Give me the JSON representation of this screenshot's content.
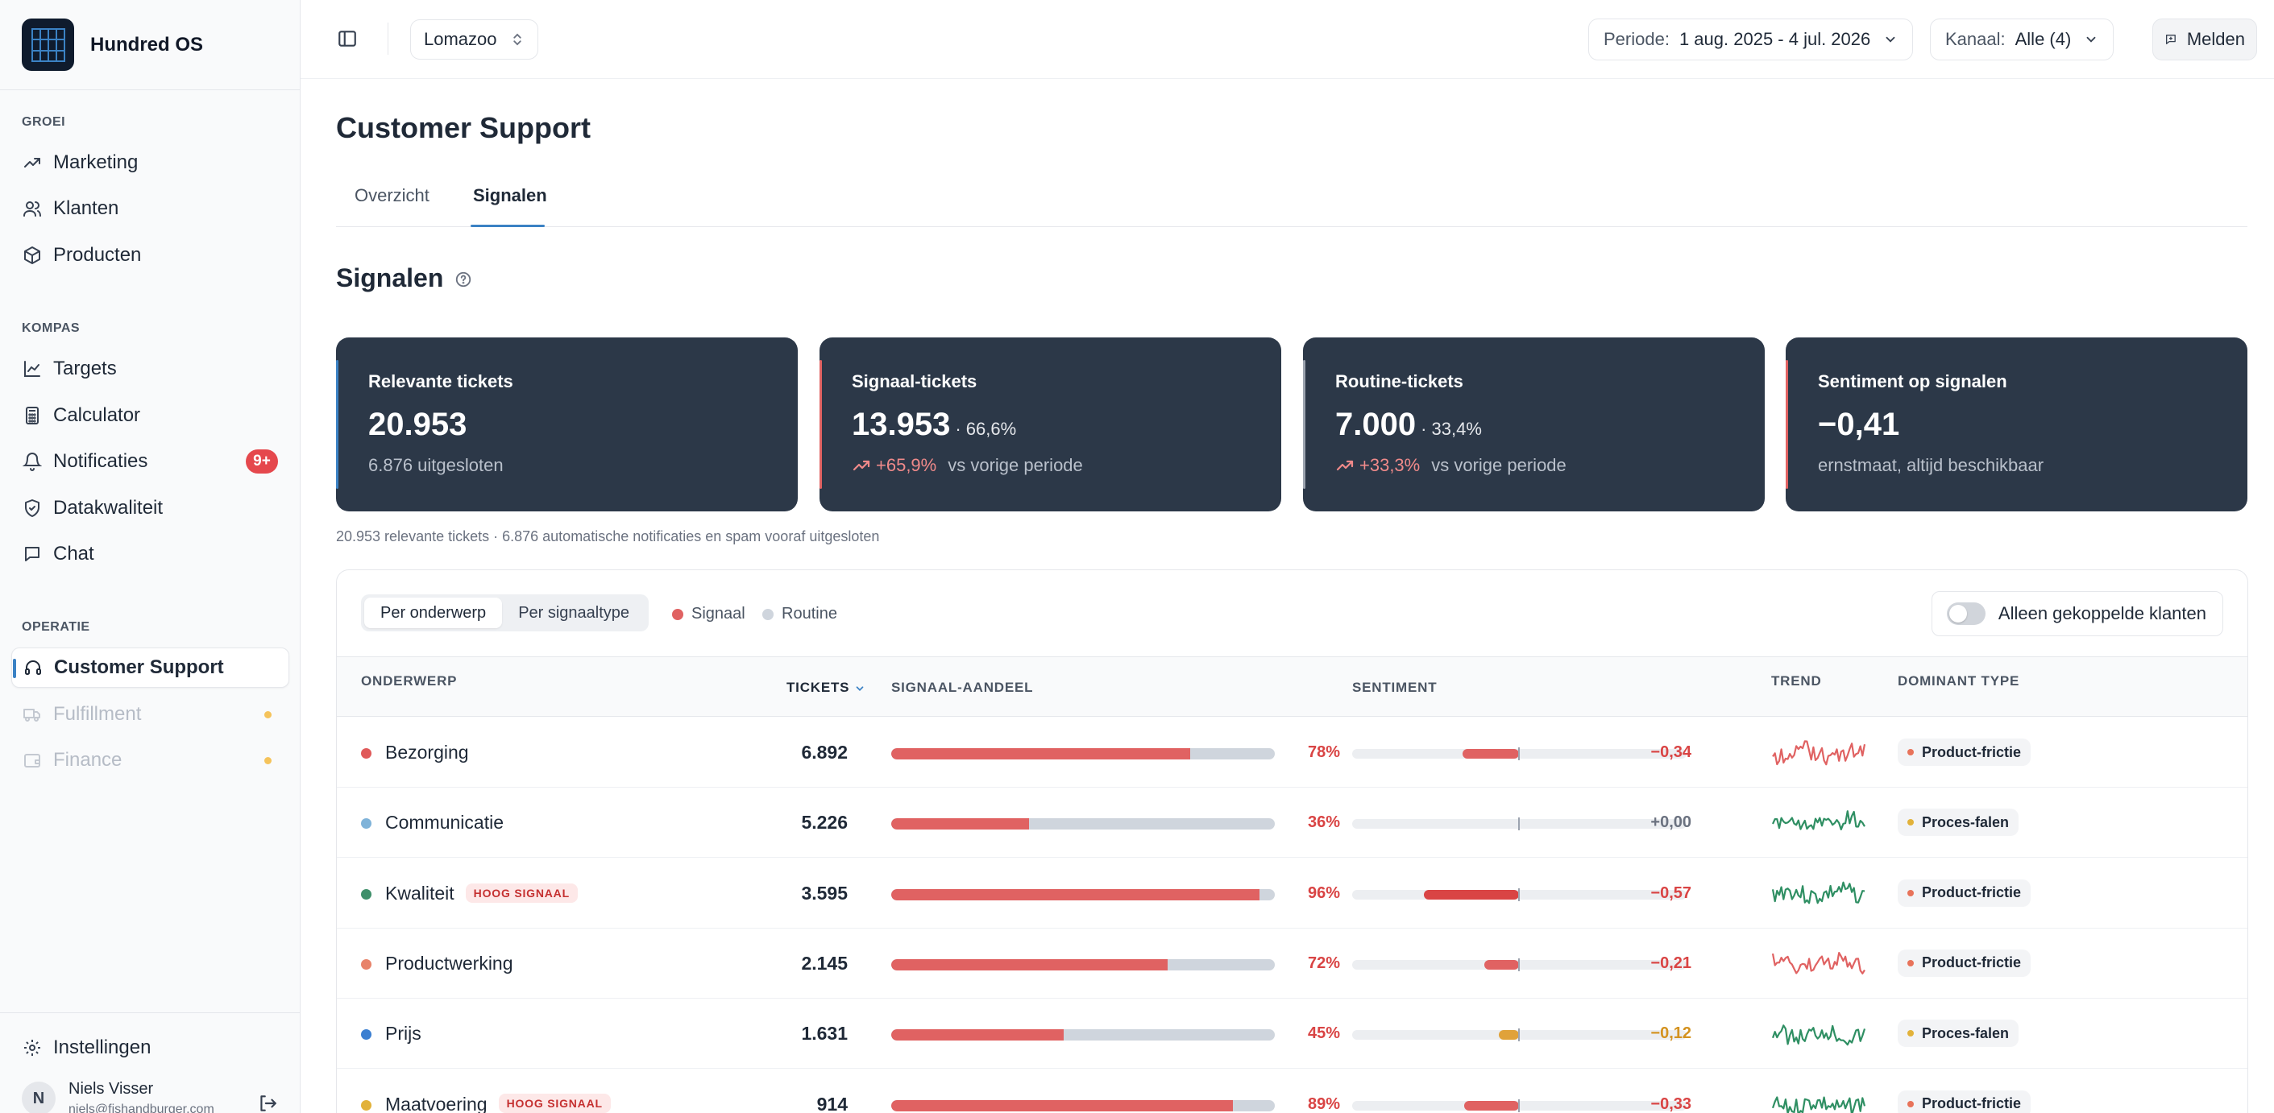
{
  "brand": {
    "name": "Hundred OS"
  },
  "sidebar": {
    "sections": [
      {
        "title": "GROEI",
        "items": [
          {
            "label": "Marketing",
            "icon": "trending-up-icon"
          },
          {
            "label": "Klanten",
            "icon": "users-icon"
          },
          {
            "label": "Producten",
            "icon": "box-icon"
          }
        ]
      },
      {
        "title": "KOMPAS",
        "items": [
          {
            "label": "Targets",
            "icon": "line-chart-icon"
          },
          {
            "label": "Calculator",
            "icon": "calculator-icon"
          },
          {
            "label": "Notificaties",
            "icon": "bell-icon",
            "badge": "9+"
          },
          {
            "label": "Datakwaliteit",
            "icon": "shield-check-icon"
          },
          {
            "label": "Chat",
            "icon": "chat-icon"
          }
        ]
      },
      {
        "title": "OPERATIE",
        "items": [
          {
            "label": "Customer Support",
            "icon": "headset-icon",
            "active": true
          },
          {
            "label": "Fulfillment",
            "icon": "truck-icon",
            "disabled": true
          },
          {
            "label": "Finance",
            "icon": "wallet-icon",
            "disabled": true
          }
        ]
      }
    ],
    "settings_label": "Instellingen",
    "user": {
      "initial": "N",
      "name": "Niels Visser",
      "email": "niels@fishandburger.com"
    }
  },
  "topbar": {
    "workspace": "Lomazoo",
    "period_label": "Periode:",
    "period_value": "1 aug. 2025 - 4 jul. 2026",
    "channel_label": "Kanaal:",
    "channel_value": "Alle (4)",
    "report_label": "Melden"
  },
  "page": {
    "title": "Customer Support",
    "tabs": [
      "Overzicht",
      "Signalen"
    ],
    "active_tab": "Signalen",
    "section_title": "Signalen"
  },
  "kpis": [
    {
      "label": "Relevante tickets",
      "value": "20.953",
      "share": "",
      "delta": "",
      "sub": "6.876 uitgesloten",
      "accent": "#3b82c4"
    },
    {
      "label": "Signaal-tickets",
      "value": "13.953",
      "share": "· 66,6%",
      "delta": "+65,9%",
      "sub": "vs vorige periode",
      "accent": "#e06262"
    },
    {
      "label": "Routine-tickets",
      "value": "7.000",
      "share": "· 33,4%",
      "delta": "+33,3%",
      "sub": "vs vorige periode",
      "accent": "#9ca3af"
    },
    {
      "label": "Sentiment op signalen",
      "value": "−0,41",
      "share": "",
      "delta": "",
      "sub": "ernstmaat, altijd beschikbaar",
      "accent": "#e06262"
    }
  ],
  "footnote": "20.953 relevante tickets · 6.876 automatische notificaties en spam vooraf uitgesloten",
  "table_controls": {
    "views": [
      "Per onderwerp",
      "Per signaaltype"
    ],
    "active_view": "Per onderwerp",
    "legend": [
      {
        "label": "Signaal",
        "color": "#e06262"
      },
      {
        "label": "Routine",
        "color": "#cfd5dd"
      }
    ],
    "toggle_label": "Alleen gekoppelde klanten"
  },
  "table": {
    "headers": {
      "topic": "ONDERWERP",
      "tickets": "TICKETS",
      "share": "SIGNAAL-AANDEEL",
      "sentiment": "SENTIMENT",
      "trend": "TREND",
      "type": "DOMINANT TYPE"
    },
    "rows": [
      {
        "topic": "Bezorging",
        "dot": "#e05a5a",
        "badge": "",
        "tickets": "6.892",
        "share": 78,
        "share_label": "78%",
        "sentiment": -0.34,
        "sentiment_label": "−0,34",
        "sent_color": "#e06262",
        "val_color": "#d94444",
        "trend_color": "#e06262",
        "type": "Product-frictie",
        "type_dot": "#e8735a",
        "seed": 1
      },
      {
        "topic": "Communicatie",
        "dot": "#7fb3d9",
        "badge": "",
        "tickets": "5.226",
        "share": 36,
        "share_label": "36%",
        "sentiment": 0.0,
        "sentiment_label": "+0,00",
        "sent_color": "#9ca3af",
        "val_color": "#6b7280",
        "trend_color": "#2f8f63",
        "type": "Proces-falen",
        "type_dot": "#e2b23a",
        "seed": 2
      },
      {
        "topic": "Kwaliteit",
        "dot": "#3e8f6a",
        "badge": "HOOG SIGNAAL",
        "tickets": "3.595",
        "share": 96,
        "share_label": "96%",
        "sentiment": -0.57,
        "sentiment_label": "−0,57",
        "sent_color": "#d94444",
        "val_color": "#d94444",
        "trend_color": "#2f8f63",
        "type": "Product-frictie",
        "type_dot": "#e8735a",
        "seed": 3
      },
      {
        "topic": "Productwerking",
        "dot": "#e8836a",
        "badge": "",
        "tickets": "2.145",
        "share": 72,
        "share_label": "72%",
        "sentiment": -0.21,
        "sentiment_label": "−0,21",
        "sent_color": "#e06262",
        "val_color": "#d94444",
        "trend_color": "#e06262",
        "type": "Product-frictie",
        "type_dot": "#e8735a",
        "seed": 4
      },
      {
        "topic": "Prijs",
        "dot": "#3b7fd1",
        "badge": "",
        "tickets": "1.631",
        "share": 45,
        "share_label": "45%",
        "sentiment": -0.12,
        "sentiment_label": "−0,12",
        "sent_color": "#e0a23a",
        "val_color": "#d4921f",
        "trend_color": "#2f8f63",
        "type": "Proces-falen",
        "type_dot": "#e2b23a",
        "seed": 5
      },
      {
        "topic": "Maatvoering",
        "dot": "#e2b23a",
        "badge": "HOOG SIGNAAL",
        "tickets": "914",
        "share": 89,
        "share_label": "89%",
        "sentiment": -0.33,
        "sentiment_label": "−0,33",
        "sent_color": "#e06262",
        "val_color": "#d94444",
        "trend_color": "#2f8f63",
        "type": "Product-frictie",
        "type_dot": "#e8735a",
        "seed": 6
      }
    ]
  }
}
